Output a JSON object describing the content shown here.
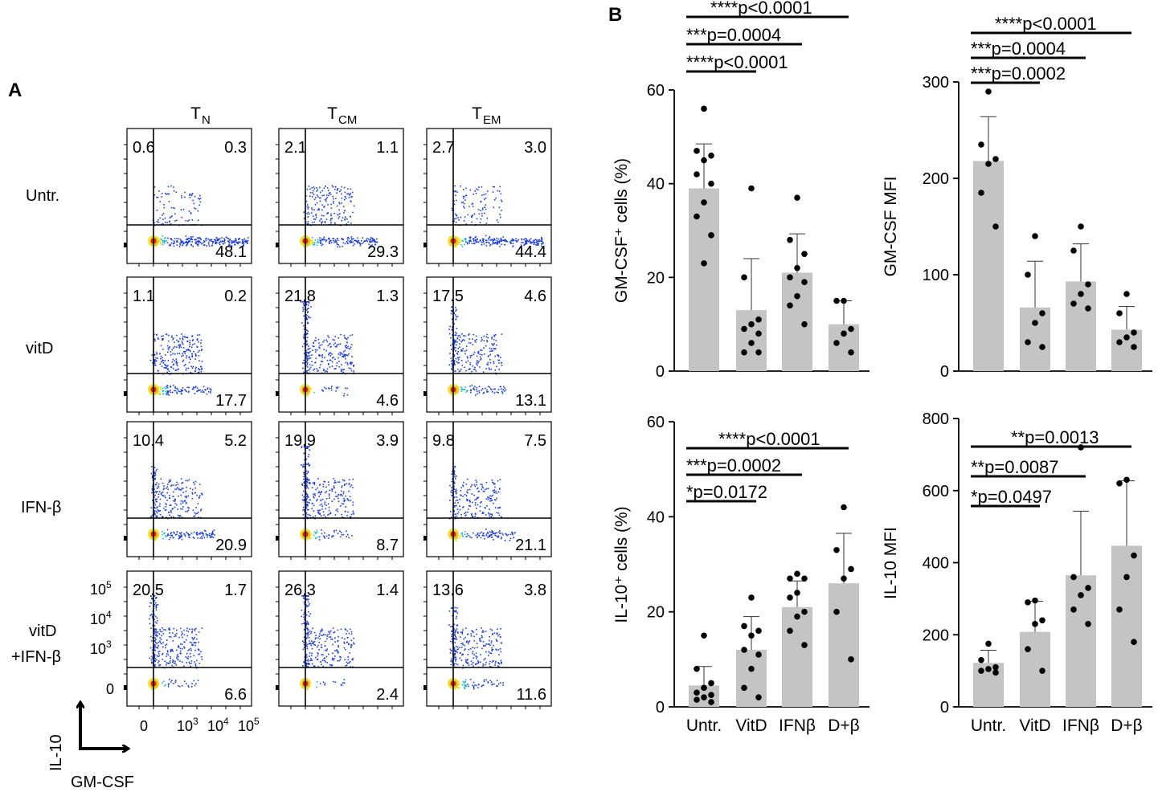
{
  "panel_a": {
    "label": "A",
    "columns": [
      {
        "main": "T",
        "sub": "N"
      },
      {
        "main": "T",
        "sub": "CM"
      },
      {
        "main": "T",
        "sub": "EM"
      }
    ],
    "rows": [
      {
        "lines": [
          "Untr."
        ]
      },
      {
        "lines": [
          "vitD"
        ]
      },
      {
        "lines": [
          "IFN-β"
        ]
      },
      {
        "lines": [
          "vitD",
          "+IFN-β"
        ]
      }
    ],
    "quadrant_values": [
      [
        [
          "0.6",
          "0.3",
          "48.1"
        ],
        [
          "2.1",
          "1.1",
          "29.3"
        ],
        [
          "2.7",
          "3.0",
          "44.4"
        ]
      ],
      [
        [
          "1.1",
          "0.2",
          "17.7"
        ],
        [
          "21.8",
          "1.3",
          "4.6"
        ],
        [
          "17.5",
          "4.6",
          "13.1"
        ]
      ],
      [
        [
          "10.4",
          "5.2",
          "20.9"
        ],
        [
          "19.9",
          "3.9",
          "8.7"
        ],
        [
          "9.8",
          "7.5",
          "21.1"
        ]
      ],
      [
        [
          "20.5",
          "1.7",
          "6.6"
        ],
        [
          "26.3",
          "1.4",
          "2.4"
        ],
        [
          "13.6",
          "3.8",
          "11.6"
        ]
      ]
    ],
    "y_ticks": [
      {
        "base": "10",
        "exp": "5"
      },
      {
        "base": "10",
        "exp": "4"
      },
      {
        "base": "10",
        "exp": "3"
      },
      {
        "base": "0",
        "exp": ""
      }
    ],
    "x_ticks": [
      {
        "base": "0",
        "exp": ""
      },
      {
        "base": "10",
        "exp": "3"
      },
      {
        "base": "10",
        "exp": "4"
      },
      {
        "base": "10",
        "exp": "5"
      }
    ],
    "axis_y_label": "IL-10",
    "axis_x_label": "GM-CSF",
    "colors": {
      "dot_low": "#1f3fd8",
      "dot_mid": "#1fb8c8",
      "dot_hot": "#e8e020",
      "dot_core": "#e82010"
    }
  },
  "panel_b": {
    "label": "B",
    "bar_color": "#c4c4c4",
    "dot_color": "#000000"
  },
  "chart_data": [
    {
      "type": "bar",
      "ylabel": "GM-CSF⁺ cells (%)",
      "categories": [
        "Untr.",
        "VitD",
        "IFNβ",
        "D+β"
      ],
      "show_xtick_labels": false,
      "values": [
        39,
        13,
        21,
        10
      ],
      "sd": [
        9.5,
        11,
        8.3,
        5
      ],
      "ylim": [
        0,
        60
      ],
      "yticks": [
        0,
        20,
        40,
        60
      ],
      "points": [
        [
          56,
          47,
          46,
          45,
          42,
          40,
          36,
          33,
          29,
          23
        ],
        [
          39,
          20,
          11,
          10,
          9,
          8,
          6,
          4,
          4
        ],
        [
          37,
          28,
          25,
          22,
          20,
          19,
          16,
          14,
          10
        ],
        [
          15,
          15,
          9,
          8,
          6,
          4
        ]
      ],
      "comparisons": [
        {
          "text": "****p<0.0001",
          "from": 0,
          "to": 1
        },
        {
          "text": "***p=0.0004",
          "from": 0,
          "to": 2
        },
        {
          "text": "****p<0.0001",
          "from": 0,
          "to": 3
        }
      ]
    },
    {
      "type": "bar",
      "ylabel": "GM-CSF MFI",
      "categories": [
        "Untr.",
        "VitD",
        "IFNβ",
        "D+β"
      ],
      "show_xtick_labels": false,
      "values": [
        218,
        66,
        93,
        43
      ],
      "sd": [
        46,
        48,
        39,
        24
      ],
      "ylim": [
        0,
        300
      ],
      "yticks": [
        0,
        100,
        200,
        300
      ],
      "points": [
        [
          290,
          235,
          220,
          215,
          185,
          150
        ],
        [
          140,
          100,
          60,
          50,
          30,
          25
        ],
        [
          150,
          125,
          90,
          80,
          70,
          65
        ],
        [
          80,
          60,
          40,
          35,
          30,
          25
        ]
      ],
      "comparisons": [
        {
          "text": "***p=0.0002",
          "from": 0,
          "to": 1
        },
        {
          "text": "***p=0.0004",
          "from": 0,
          "to": 2
        },
        {
          "text": "****p<0.0001",
          "from": 0,
          "to": 3
        }
      ]
    },
    {
      "type": "bar",
      "ylabel": "IL-10⁺ cells (%)",
      "categories": [
        "Untr.",
        "VitD",
        "IFNβ",
        "D+β"
      ],
      "show_xtick_labels": true,
      "values": [
        4.5,
        12,
        21,
        26
      ],
      "sd": [
        4,
        7,
        5.5,
        10.5
      ],
      "ylim": [
        0,
        60
      ],
      "yticks": [
        0,
        20,
        40,
        60
      ],
      "points": [
        [
          15,
          8,
          5,
          4,
          3,
          2.5,
          2,
          1.5,
          1
        ],
        [
          23,
          17,
          16,
          15,
          12,
          11,
          8,
          4,
          2
        ],
        [
          28,
          27,
          27,
          24,
          23,
          20,
          19,
          16,
          13
        ],
        [
          42,
          33,
          29,
          27,
          20,
          10
        ]
      ],
      "comparisons": [
        {
          "text": "*p=0.0172",
          "from": 0,
          "to": 1
        },
        {
          "text": "***p=0.0002",
          "from": 0,
          "to": 2
        },
        {
          "text": "****p<0.0001",
          "from": 0,
          "to": 3
        }
      ]
    },
    {
      "type": "bar",
      "ylabel": "IL-10 MFI",
      "categories": [
        "Untr.",
        "VitD",
        "IFNβ",
        "D+β"
      ],
      "show_xtick_labels": true,
      "values": [
        122,
        208,
        365,
        447
      ],
      "sd": [
        35,
        85,
        178,
        180
      ],
      "ylim": [
        0,
        800
      ],
      "yticks": [
        0,
        200,
        400,
        600,
        800
      ],
      "points": [
        [
          175,
          130,
          110,
          105,
          100,
          95
        ],
        [
          295,
          290,
          240,
          230,
          160,
          100
        ],
        [
          720,
          360,
          330,
          310,
          270,
          230
        ],
        [
          630,
          620,
          420,
          360,
          270,
          180
        ]
      ],
      "comparisons": [
        {
          "text": "*p=0.0497",
          "from": 0,
          "to": 1
        },
        {
          "text": "**p=0.0087",
          "from": 0,
          "to": 2
        },
        {
          "text": "**p=0.0013",
          "from": 0,
          "to": 3
        }
      ]
    }
  ]
}
